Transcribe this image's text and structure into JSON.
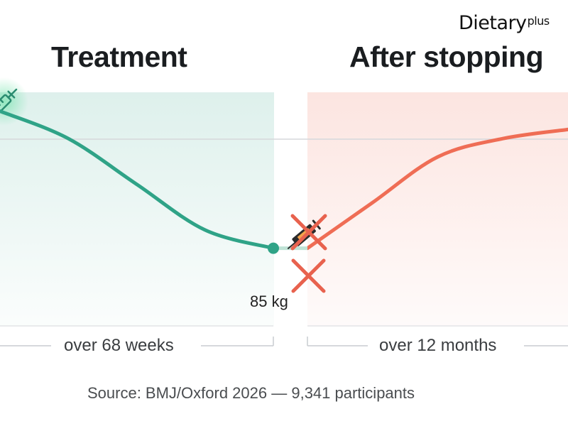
{
  "brand": {
    "name": "Dietary",
    "suffix": "plus"
  },
  "headings": {
    "treatment": "Treatment",
    "after": "After stopping"
  },
  "labels": {
    "end_weight": "85 kg"
  },
  "durations": {
    "treatment": "over 68 weeks",
    "after": "over 12 months"
  },
  "source": "Source: BMJ/Oxford 2026 — 9,341 participants",
  "icons": {
    "treatment_start": "syringe-icon",
    "treatment_stop": "crossed-syringe-icon",
    "stop_marker": "cross-icon"
  },
  "colors": {
    "treatment": "#2fa387",
    "after": "#ef6d55",
    "cross": "#e8624e",
    "reference_line": "#d5d8db"
  },
  "chart_data": {
    "type": "line",
    "title": "",
    "xlabel": "",
    "ylabel": "",
    "grid": false,
    "legend": "none",
    "series": [
      {
        "name": "Treatment",
        "x": [
          0,
          17,
          34,
          51,
          68
        ],
        "y": [
          100,
          97,
          92,
          87,
          85
        ],
        "end_label": "85 kg"
      },
      {
        "name": "After stopping",
        "x": [
          0,
          3,
          6,
          9,
          12
        ],
        "y": [
          85,
          90,
          95,
          97,
          98
        ]
      }
    ],
    "reference_line": 100,
    "ylim": [
      80,
      103
    ]
  }
}
